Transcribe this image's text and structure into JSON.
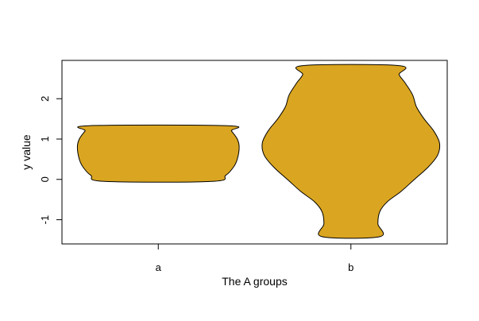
{
  "chart_data": {
    "type": "violin",
    "title": "",
    "xlabel": "The A groups",
    "ylabel": "y value",
    "categories": [
      "a",
      "b"
    ],
    "ylim": [
      -1.6,
      2.95
    ],
    "yticks": [
      -1,
      0,
      1,
      2
    ],
    "ytick_labels": [
      "-1",
      "0",
      "1",
      "2"
    ],
    "grid": false,
    "legend": "none",
    "fill_color": "#DAA520",
    "outline_color": "#000000",
    "violins": [
      {
        "category": "a",
        "min": -0.05,
        "max": 1.33,
        "density_profile": [
          {
            "y": -0.05,
            "half_width": 0.28
          },
          {
            "y": 0.1,
            "half_width": 0.35
          },
          {
            "y": 0.3,
            "half_width": 0.39
          },
          {
            "y": 0.5,
            "half_width": 0.41
          },
          {
            "y": 0.8,
            "half_width": 0.42
          },
          {
            "y": 1.0,
            "half_width": 0.41
          },
          {
            "y": 1.2,
            "half_width": 0.38
          },
          {
            "y": 1.33,
            "half_width": 0.36
          }
        ]
      },
      {
        "category": "b",
        "min": -1.42,
        "max": 2.82,
        "density_profile": [
          {
            "y": -1.42,
            "half_width": 0.15
          },
          {
            "y": -1.1,
            "half_width": 0.14
          },
          {
            "y": -0.8,
            "half_width": 0.15
          },
          {
            "y": -0.55,
            "half_width": 0.19
          },
          {
            "y": -0.3,
            "half_width": 0.26
          },
          {
            "y": 0.0,
            "half_width": 0.33
          },
          {
            "y": 0.3,
            "half_width": 0.4
          },
          {
            "y": 0.6,
            "half_width": 0.45
          },
          {
            "y": 0.9,
            "half_width": 0.46
          },
          {
            "y": 1.2,
            "half_width": 0.43
          },
          {
            "y": 1.5,
            "half_width": 0.38
          },
          {
            "y": 1.8,
            "half_width": 0.34
          },
          {
            "y": 2.1,
            "half_width": 0.32
          },
          {
            "y": 2.4,
            "half_width": 0.28
          },
          {
            "y": 2.6,
            "half_width": 0.25
          },
          {
            "y": 2.82,
            "half_width": 0.25
          }
        ]
      }
    ]
  }
}
